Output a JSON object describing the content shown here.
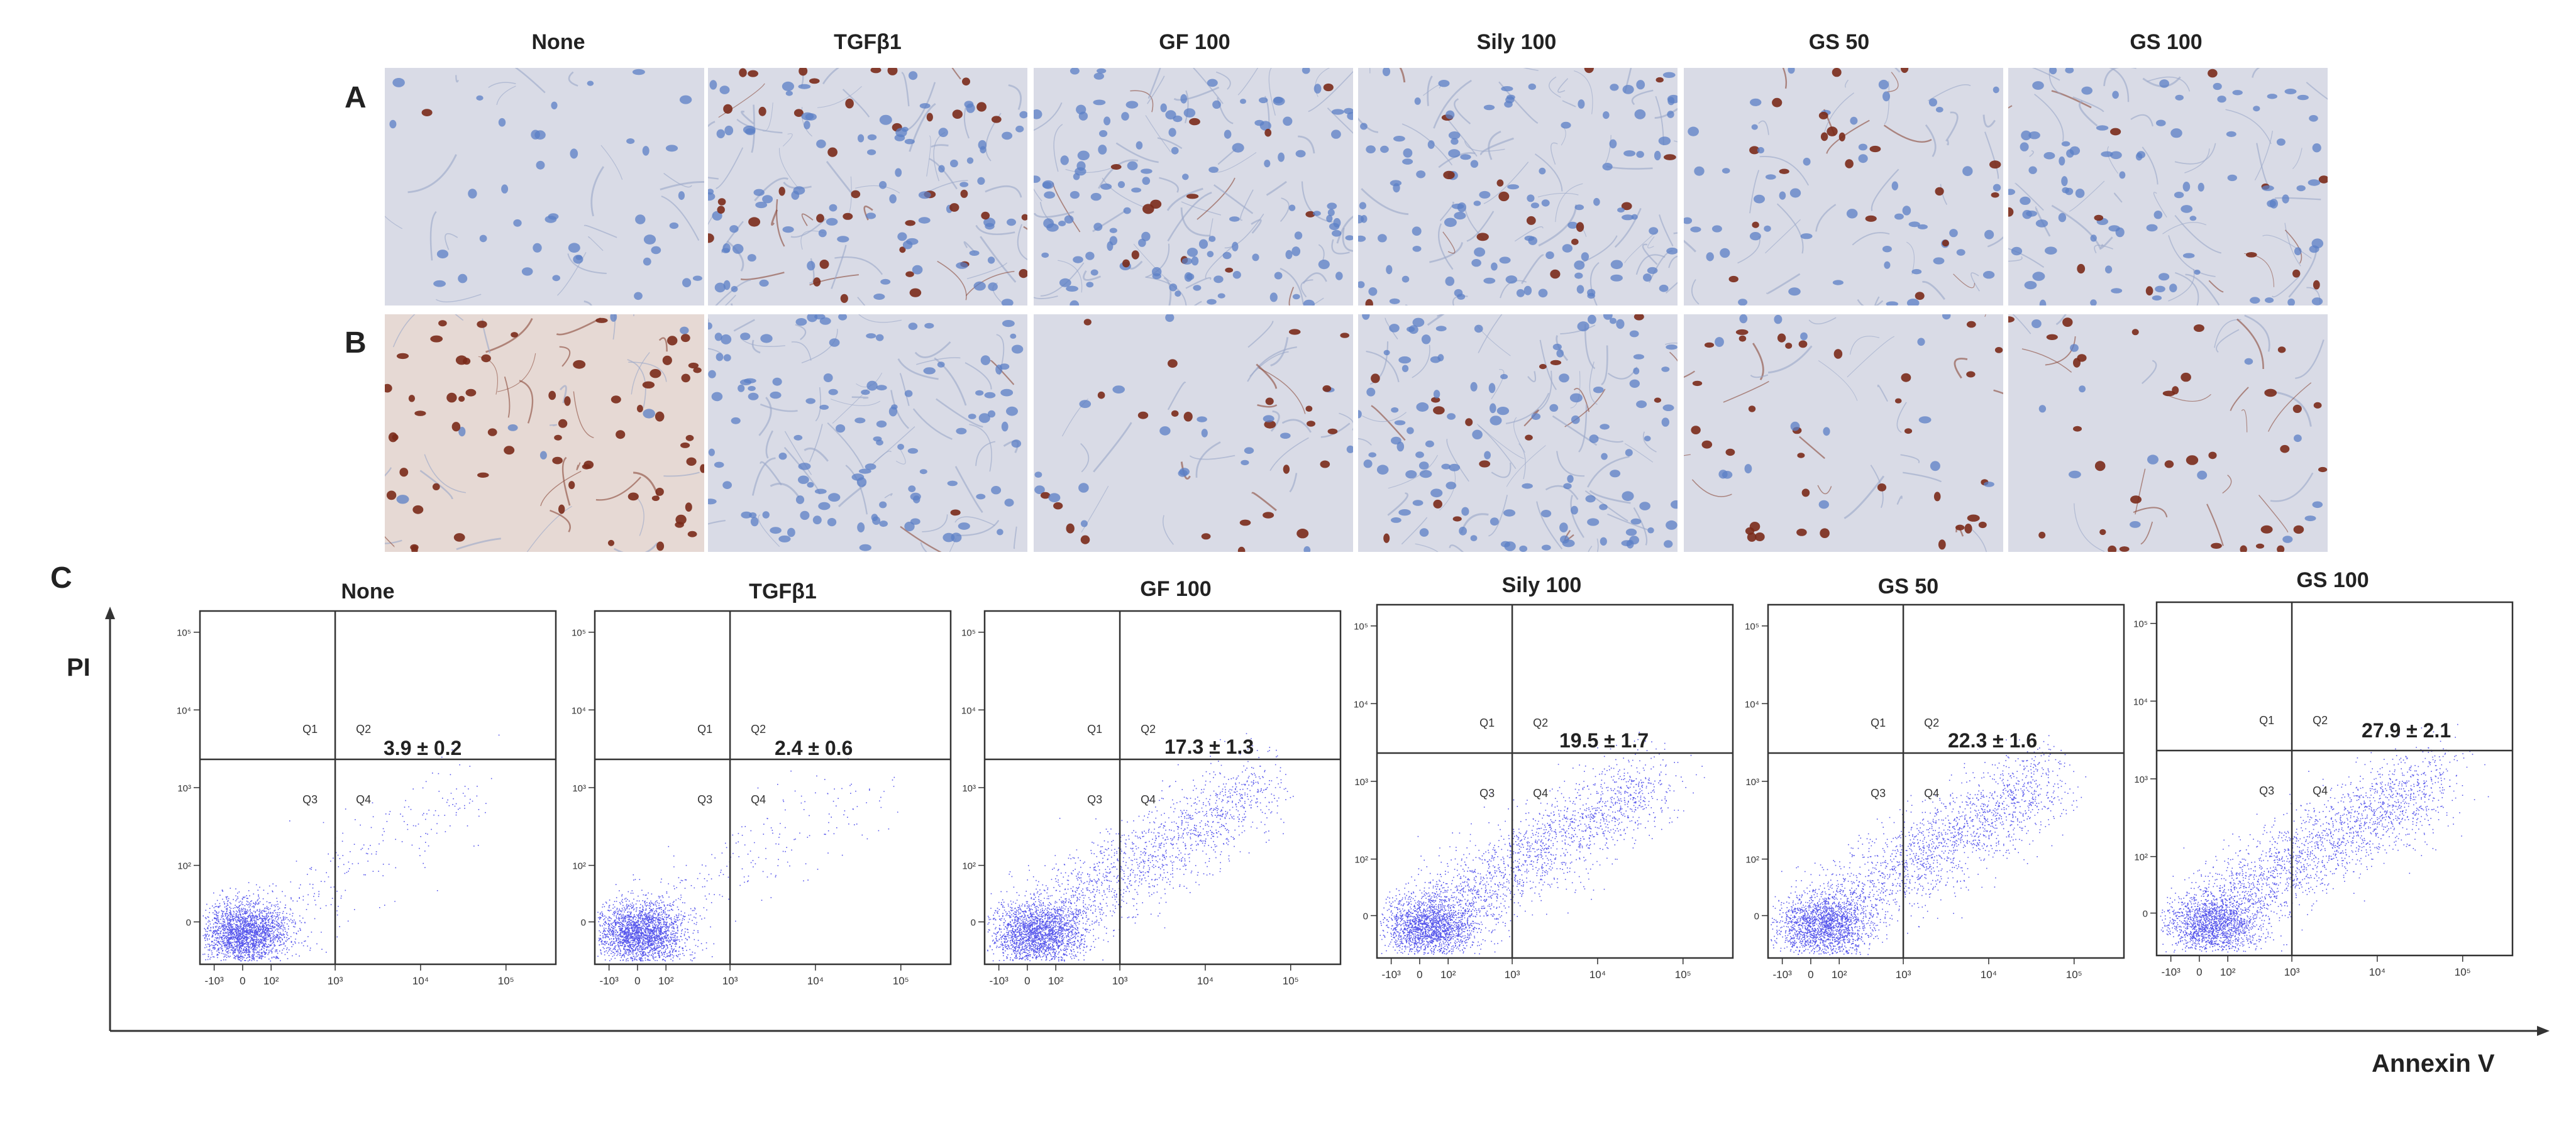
{
  "figure": {
    "panel_a_label": "A",
    "panel_b_label": "B",
    "panel_c_label": "C",
    "columns": [
      "None",
      "TGFβ1",
      "GF 100",
      "Sily 100",
      "GS 50",
      "GS 100"
    ]
  },
  "flow": {
    "y_axis_label": "PI",
    "x_axis_label": "Annexin V",
    "quadrant_labels": [
      "Q1",
      "Q2",
      "Q3",
      "Q4"
    ],
    "x_tick_labels": [
      "-10³",
      "0",
      "10²",
      "10³",
      "10⁴",
      "10⁵"
    ],
    "y_tick_labels": [
      "0",
      "10²",
      "10³",
      "10⁴",
      "10⁵"
    ],
    "scatter_color": "#1f1fe6"
  },
  "chart_data": {
    "type": "scatter",
    "x_label": "Annexin V",
    "y_label": "PI",
    "categories": [
      "None",
      "TGFβ1",
      "GF 100",
      "Sily 100",
      "GS 50",
      "GS 100"
    ],
    "values": [
      3.9,
      2.4,
      17.3,
      19.5,
      22.3,
      27.9
    ],
    "errors": [
      0.2,
      0.6,
      1.3,
      1.7,
      1.6,
      2.1
    ],
    "value_labels": [
      "3.9 ± 0.2",
      "2.4 ± 0.6",
      "17.3 ± 1.3",
      "19.5 ± 1.7",
      "22.3 ± 1.6",
      "27.9 ± 2.1"
    ]
  },
  "stains": {
    "hematoxylin": "#5b7fc6",
    "dab": "#7a2a1a",
    "background": "#d9dbe6"
  }
}
